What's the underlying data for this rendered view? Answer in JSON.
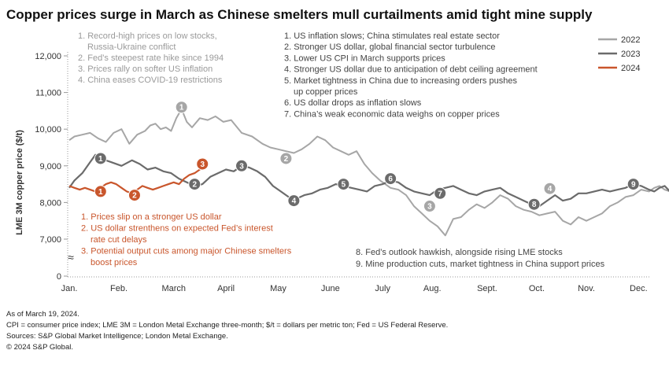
{
  "chart_data": {
    "type": "line",
    "title": "Copper prices surge in March as Chinese smelters mull curtailments amid tight mine supply",
    "ylabel": "LME 3M copper price ($/t)",
    "xlabel": "",
    "ylim": [
      0,
      12000
    ],
    "y_ticks": [
      "12,000",
      "11,000",
      "10,000",
      "9,000",
      "8,000",
      "7,000",
      "0"
    ],
    "x_ticks": [
      "Jan.",
      "Feb.",
      "March",
      "April",
      "May",
      "June",
      "July",
      "Aug.",
      "Sept.",
      "Oct.",
      "Nov.",
      "Dec."
    ],
    "axis_break": true,
    "legend_position": "top-right",
    "colors": {
      "2022": "#a6a6a6",
      "2023": "#6b6b6b",
      "2024": "#c9562c"
    },
    "series": [
      {
        "name": "2022",
        "months": [
          0,
          0.1,
          0.25,
          0.4,
          0.55,
          0.7,
          0.85,
          1.0,
          1.15,
          1.3,
          1.45,
          1.55,
          1.65,
          1.75,
          1.85,
          1.95,
          2.05,
          2.15,
          2.25,
          2.35,
          2.5,
          2.65,
          2.8,
          2.95,
          3.1,
          3.3,
          3.5,
          3.7,
          3.85,
          4.0,
          4.15,
          4.3,
          4.45,
          4.6,
          4.75,
          4.9,
          5.05,
          5.2,
          5.35,
          5.5,
          5.65,
          5.8,
          5.95,
          6.05,
          6.15,
          6.3,
          6.45,
          6.6,
          6.75,
          6.9,
          7.05,
          7.2,
          7.35,
          7.5,
          7.65,
          7.8,
          7.95,
          8.1,
          8.25,
          8.4,
          8.55,
          8.7,
          8.85,
          9.0,
          9.15,
          9.3,
          9.45,
          9.6,
          9.75,
          9.9,
          10.05,
          10.2,
          10.35,
          10.5,
          10.65,
          10.8,
          10.95,
          11.1,
          11.2,
          11.3,
          11.4,
          11.5
        ],
        "values": [
          9700,
          9800,
          9850,
          9900,
          9750,
          9650,
          9900,
          10000,
          9600,
          9850,
          9950,
          10100,
          10150,
          10000,
          10050,
          9950,
          10300,
          10550,
          10200,
          10050,
          10300,
          10250,
          10350,
          10200,
          10250,
          9900,
          9800,
          9600,
          9500,
          9450,
          9400,
          9350,
          9450,
          9600,
          9800,
          9700,
          9500,
          9400,
          9300,
          9400,
          9050,
          8800,
          8600,
          8500,
          8400,
          8350,
          8200,
          7900,
          7700,
          7500,
          7350,
          7100,
          7550,
          7600,
          7800,
          7950,
          7850,
          8000,
          8200,
          8100,
          7900,
          7800,
          7750,
          7650,
          7700,
          7750,
          7500,
          7400,
          7600,
          7500,
          7600,
          7700,
          7900,
          8000,
          8150,
          8200,
          8350,
          8300,
          8400,
          8450,
          8350,
          8300
        ],
        "annotations": [
          {
            "label": "1",
            "month": 2.15,
            "value": 10600
          },
          {
            "label": "2",
            "month": 4.15,
            "value": 9200
          },
          {
            "label": "3",
            "month": 6.9,
            "value": 7900
          },
          {
            "label": "4",
            "month": 9.2,
            "value": 8380
          }
        ]
      },
      {
        "name": "2023",
        "months": [
          0,
          0.1,
          0.25,
          0.4,
          0.5,
          0.6,
          0.8,
          1.0,
          1.2,
          1.35,
          1.5,
          1.65,
          1.8,
          1.95,
          2.1,
          2.25,
          2.4,
          2.55,
          2.7,
          2.85,
          3.0,
          3.15,
          3.3,
          3.45,
          3.6,
          3.75,
          3.9,
          4.05,
          4.2,
          4.35,
          4.5,
          4.65,
          4.8,
          4.95,
          5.1,
          5.25,
          5.4,
          5.55,
          5.7,
          5.85,
          6.0,
          6.15,
          6.3,
          6.45,
          6.6,
          6.75,
          6.9,
          7.05,
          7.2,
          7.35,
          7.5,
          7.65,
          7.8,
          7.95,
          8.1,
          8.25,
          8.4,
          8.55,
          8.7,
          8.85,
          9.0,
          9.15,
          9.3,
          9.45,
          9.6,
          9.75,
          9.9,
          10.05,
          10.2,
          10.35,
          10.5,
          10.65,
          10.8,
          10.95,
          11.1,
          11.2,
          11.3,
          11.4,
          11.5
        ],
        "values": [
          8400,
          8600,
          8800,
          9100,
          9300,
          9200,
          9100,
          9000,
          9150,
          9050,
          8900,
          8950,
          8850,
          8800,
          8650,
          8550,
          8450,
          8500,
          8700,
          8800,
          8900,
          8850,
          9000,
          8950,
          8850,
          8700,
          8450,
          8300,
          8150,
          8100,
          8200,
          8250,
          8350,
          8400,
          8500,
          8450,
          8400,
          8350,
          8300,
          8450,
          8500,
          8600,
          8550,
          8400,
          8300,
          8250,
          8200,
          8350,
          8400,
          8450,
          8350,
          8250,
          8200,
          8300,
          8350,
          8400,
          8250,
          8150,
          8050,
          7950,
          7900,
          8050,
          8200,
          8050,
          8100,
          8250,
          8250,
          8300,
          8350,
          8300,
          8350,
          8400,
          8500,
          8450,
          8350,
          8300,
          8400,
          8450,
          8300
        ],
        "annotations": [
          {
            "label": "1",
            "month": 0.6,
            "value": 9200
          },
          {
            "label": "2",
            "month": 2.4,
            "value": 8500
          },
          {
            "label": "3",
            "month": 3.3,
            "value": 9000
          },
          {
            "label": "4",
            "month": 4.3,
            "value": 8050
          },
          {
            "label": "5",
            "month": 5.25,
            "value": 8500
          },
          {
            "label": "6",
            "month": 6.15,
            "value": 8650
          },
          {
            "label": "7",
            "month": 7.1,
            "value": 8250
          },
          {
            "label": "8",
            "month": 8.9,
            "value": 7950
          },
          {
            "label": "9",
            "month": 10.8,
            "value": 8500
          }
        ]
      },
      {
        "name": "2024",
        "months": [
          0,
          0.1,
          0.2,
          0.3,
          0.4,
          0.5,
          0.6,
          0.7,
          0.8,
          0.9,
          1.0,
          1.1,
          1.2,
          1.3,
          1.4,
          1.5,
          1.6,
          1.7,
          1.8,
          1.9,
          2.0,
          2.1,
          2.2,
          2.3,
          2.4,
          2.5,
          2.6
        ],
        "values": [
          8450,
          8400,
          8350,
          8400,
          8350,
          8300,
          8400,
          8500,
          8550,
          8500,
          8400,
          8300,
          8250,
          8350,
          8450,
          8400,
          8350,
          8400,
          8450,
          8500,
          8550,
          8500,
          8650,
          8750,
          8800,
          8900,
          9050
        ],
        "annotations": [
          {
            "label": "1",
            "month": 0.6,
            "value": 8300
          },
          {
            "label": "2",
            "month": 1.25,
            "value": 8200
          },
          {
            "label": "3",
            "month": 2.55,
            "value": 9050
          }
        ]
      }
    ],
    "notes_2022": [
      "1. Record-high prices on low stocks,",
      "Russia-Ukraine conflict",
      "2. Fed’s steepest rate hike since 1994",
      "3. Prices rally on softer US inflation",
      "4. China eases COVID-19 restrictions"
    ],
    "notes_2023_top": [
      "1. US inflation slows; China stimulates real estate sector",
      "2. Stronger US dollar, global financial sector turbulence",
      "3. Lower US CPI in March supports prices",
      "4. Stronger US dollar due to anticipation of debt ceiling agreement",
      "5. Market tightness in China due to increasing orders pushes",
      "up copper prices",
      "6. US dollar drops as inflation slows",
      "7. China’s weak economic data weighs on copper prices"
    ],
    "notes_2023_bottom": [
      "8. Fed’s outlook hawkish, alongside rising LME stocks",
      "9. Mine production cuts, market tightness in China support prices"
    ],
    "notes_2024": [
      "1. Prices slip on a stronger US dollar",
      "2. US dollar strenthens on expected Fed’s interest",
      "rate cut delays",
      "3. Potential output cuts among major Chinese smelters",
      "boost prices"
    ],
    "footnotes": [
      "As of March 19, 2024.",
      "CPI = consumer price index; LME 3M = London Metal Exchange three-month; $/t = dollars per metric ton; Fed = US Federal Reserve.",
      "Sources: S&P Global Market Intelligence; London Metal Exchange.",
      "© 2024 S&P Global."
    ]
  }
}
